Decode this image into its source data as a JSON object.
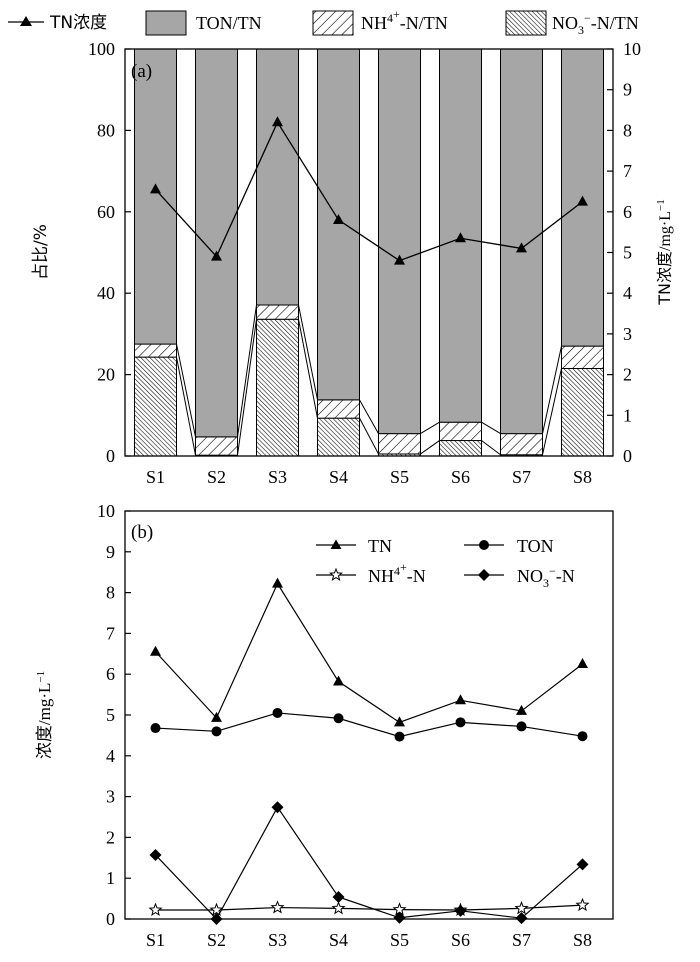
{
  "colors": {
    "ton": "#a6a6a6",
    "line": "#000000",
    "background": "#ffffff"
  },
  "chart_data": [
    {
      "type": "bar",
      "panel_label": "(a)",
      "stacked": true,
      "categories": [
        "S1",
        "S2",
        "S3",
        "S4",
        "S5",
        "S6",
        "S7",
        "S8"
      ],
      "legend": {
        "line_label": "TN浓度",
        "ton_label": "TON/TN",
        "nh4_label": "NH4+-N/TN",
        "no3_label": "NO3−-N/TN"
      },
      "series": [
        {
          "name": "NO3−-N/TN",
          "pattern": "dense-backslash-hatch",
          "values": [
            24.3,
            0.2,
            33.6,
            9.3,
            0.5,
            3.8,
            0.3,
            21.5
          ]
        },
        {
          "name": "NH4+-N/TN",
          "pattern": "forward-hatch",
          "values": [
            3.2,
            4.5,
            3.5,
            4.5,
            5.0,
            4.5,
            5.2,
            5.5
          ]
        },
        {
          "name": "TON/TN",
          "pattern": "solid-gray",
          "values": [
            72.5,
            95.3,
            62.9,
            86.2,
            94.5,
            91.7,
            94.5,
            73.0
          ]
        }
      ],
      "line_series": {
        "name": "TN浓度",
        "axis": "right",
        "values": [
          6.55,
          4.9,
          8.2,
          5.8,
          4.8,
          5.35,
          5.1,
          6.25
        ]
      },
      "ylabel": "占比/%",
      "ylabel_right": "TN浓度/mg·L⁻¹",
      "ylim": [
        0,
        100
      ],
      "yticks": [
        "0",
        "20",
        "40",
        "60",
        "80",
        "100"
      ],
      "ylim_right": [
        0,
        10
      ],
      "yticks_right": [
        "0",
        "1",
        "2",
        "3",
        "4",
        "5",
        "6",
        "7",
        "8",
        "9",
        "10"
      ],
      "grid": false
    },
    {
      "type": "line",
      "panel_label": "(b)",
      "categories": [
        "S1",
        "S2",
        "S3",
        "S4",
        "S5",
        "S6",
        "S7",
        "S8"
      ],
      "legend_placement": "top-right",
      "series": [
        {
          "name": "TN",
          "marker": "triangle",
          "values": [
            6.55,
            4.93,
            8.22,
            5.82,
            4.82,
            5.36,
            5.1,
            6.25
          ]
        },
        {
          "name": "TON",
          "marker": "circle",
          "values": [
            4.68,
            4.6,
            5.05,
            4.92,
            4.47,
            4.82,
            4.72,
            4.48
          ]
        },
        {
          "name": "NH4+-N",
          "marker": "star",
          "values": [
            0.22,
            0.22,
            0.28,
            0.26,
            0.23,
            0.22,
            0.26,
            0.34
          ]
        },
        {
          "name": "NO3−-N",
          "marker": "diamond",
          "values": [
            1.57,
            0.0,
            2.74,
            0.54,
            0.03,
            0.2,
            0.02,
            1.34
          ]
        }
      ],
      "legend": {
        "tn": "TN",
        "ton": "TON",
        "nh4": "NH4+-N",
        "no3": "NO3−-N"
      },
      "ylabel": "浓度/mg·L⁻¹",
      "ylim": [
        0,
        10
      ],
      "yticks": [
        "0",
        "1",
        "2",
        "3",
        "4",
        "5",
        "6",
        "7",
        "8",
        "9",
        "10"
      ],
      "grid": false
    }
  ]
}
